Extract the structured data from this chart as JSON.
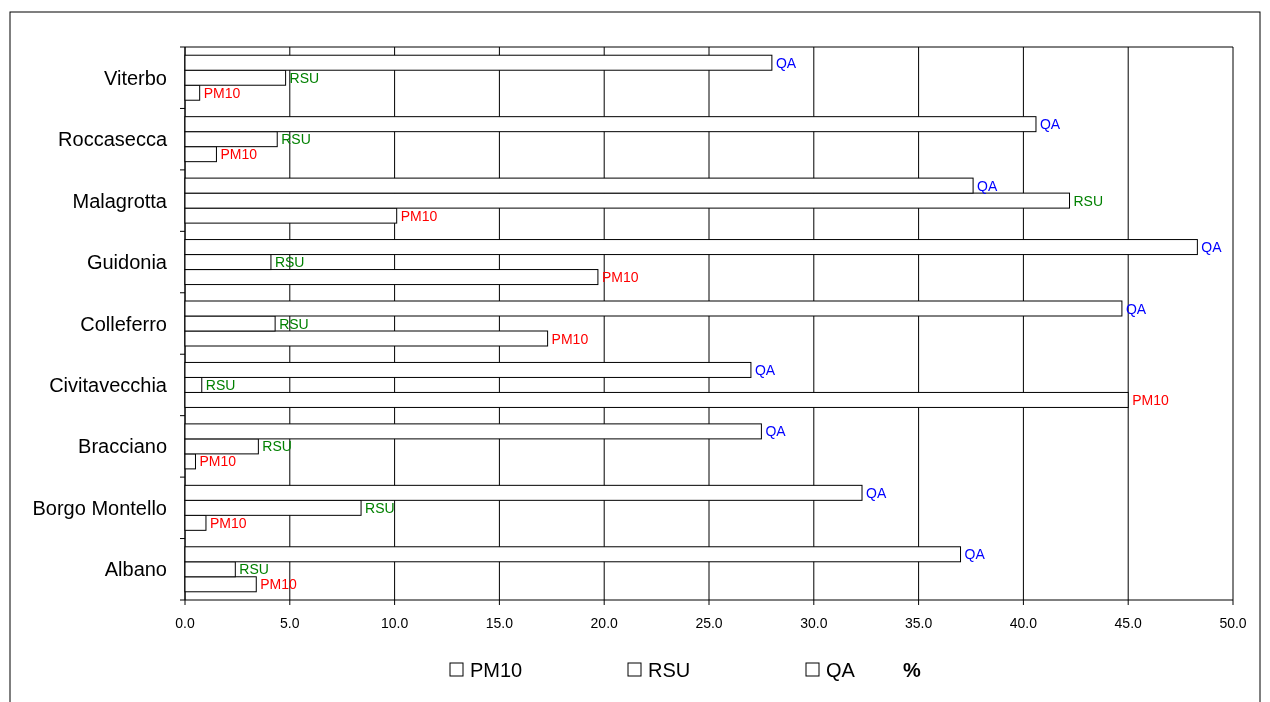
{
  "chart_data": {
    "type": "bar",
    "orientation": "horizontal",
    "categories": [
      "Viterbo",
      "Roccasecca",
      "Malagrotta",
      "Guidonia",
      "Colleferro",
      "Civitavecchia",
      "Bracciano",
      "Borgo Montello",
      "Albano"
    ],
    "series": [
      {
        "name": "PM10",
        "color": "#ffffff",
        "values": [
          0.7,
          1.5,
          10.1,
          19.7,
          17.3,
          45.0,
          0.5,
          1.0,
          3.4
        ]
      },
      {
        "name": "RSU",
        "color": "#ffffff",
        "values": [
          4.8,
          4.4,
          42.2,
          4.1,
          4.3,
          0.8,
          3.5,
          8.4,
          2.4
        ]
      },
      {
        "name": "QA",
        "color": "#ffffff",
        "values": [
          28.0,
          40.6,
          37.6,
          48.3,
          44.7,
          27.0,
          27.5,
          32.3,
          37.0
        ]
      }
    ],
    "xlim": [
      0,
      50
    ],
    "xticks": [
      {
        "value": 0,
        "label": "0.0"
      },
      {
        "value": 5,
        "label": "5.0"
      },
      {
        "value": 10,
        "label": "10.0"
      },
      {
        "value": 15,
        "label": "15.0"
      },
      {
        "value": 20,
        "label": "20.0"
      },
      {
        "value": 25,
        "label": "25.0"
      },
      {
        "value": 30,
        "label": "30.0"
      },
      {
        "value": 35,
        "label": "35.0"
      },
      {
        "value": 40,
        "label": "40.0"
      },
      {
        "value": 45,
        "label": "45.0"
      },
      {
        "value": 50,
        "label": "50.0"
      }
    ],
    "xlabel": "%",
    "grid": "x",
    "legend": "bottom"
  }
}
